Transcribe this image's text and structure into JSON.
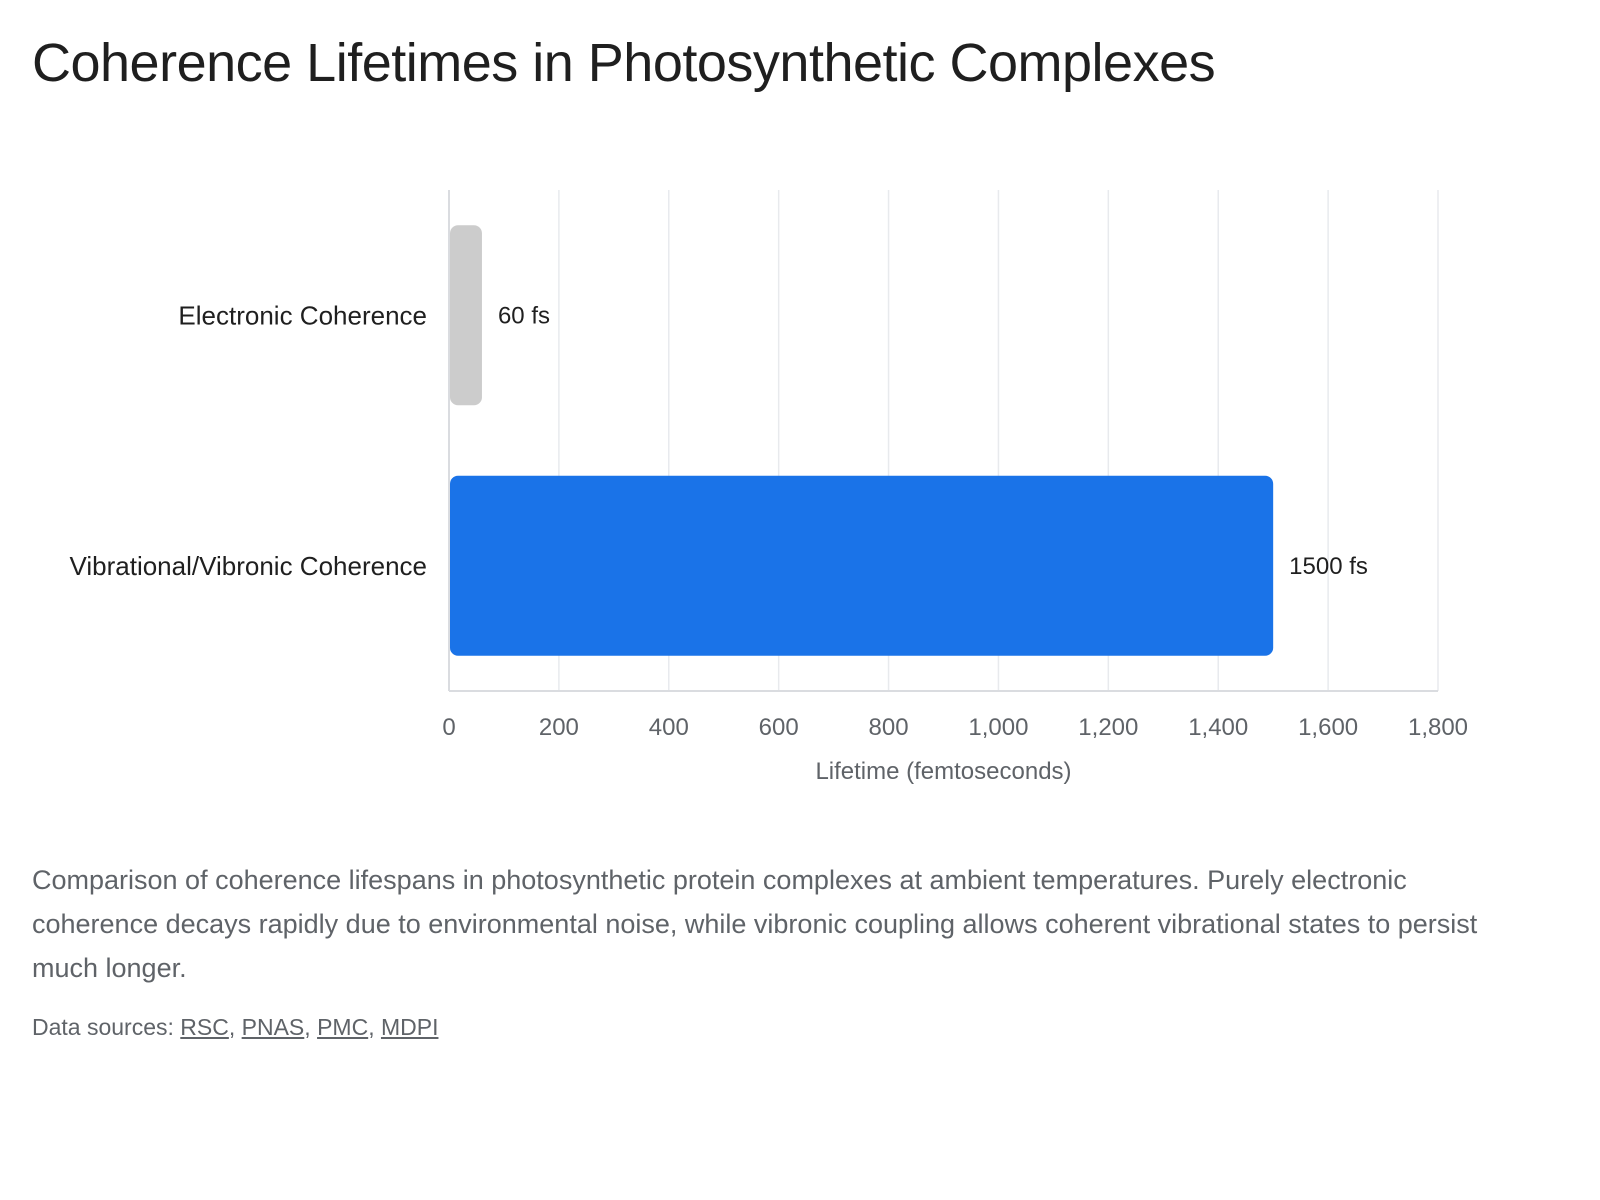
{
  "title": "Coherence Lifetimes in Photosynthetic Complexes",
  "chart_data": {
    "type": "bar",
    "orientation": "horizontal",
    "categories": [
      "Electronic Coherence",
      "Vibrational/Vibronic Coherence"
    ],
    "values": [
      60,
      1500
    ],
    "value_labels": [
      "60 fs",
      "1500 fs"
    ],
    "bar_colors": [
      "#cccccc",
      "#1a73e8"
    ],
    "xlabel": "Lifetime (femtoseconds)",
    "ylabel": "",
    "xlim": [
      0,
      1800
    ],
    "x_ticks": [
      0,
      200,
      400,
      600,
      800,
      1000,
      1200,
      1400,
      1600,
      1800
    ],
    "x_tick_labels": [
      "0",
      "200",
      "400",
      "600",
      "800",
      "1,000",
      "1,200",
      "1,400",
      "1,600",
      "1,800"
    ],
    "grid": "vertical",
    "legend": "none"
  },
  "caption": "Comparison of coherence lifespans in photosynthetic protein complexes at ambient temperatures. Purely electronic coherence decays rapidly due to environmental noise, while vibronic coupling allows coherent vibrational states to persist much longer.",
  "sources": {
    "prefix": "Data sources: ",
    "links": [
      {
        "label": "RSC"
      },
      {
        "label": "PNAS"
      },
      {
        "label": "PMC"
      },
      {
        "label": "MDPI"
      }
    ],
    "separator": ", "
  }
}
